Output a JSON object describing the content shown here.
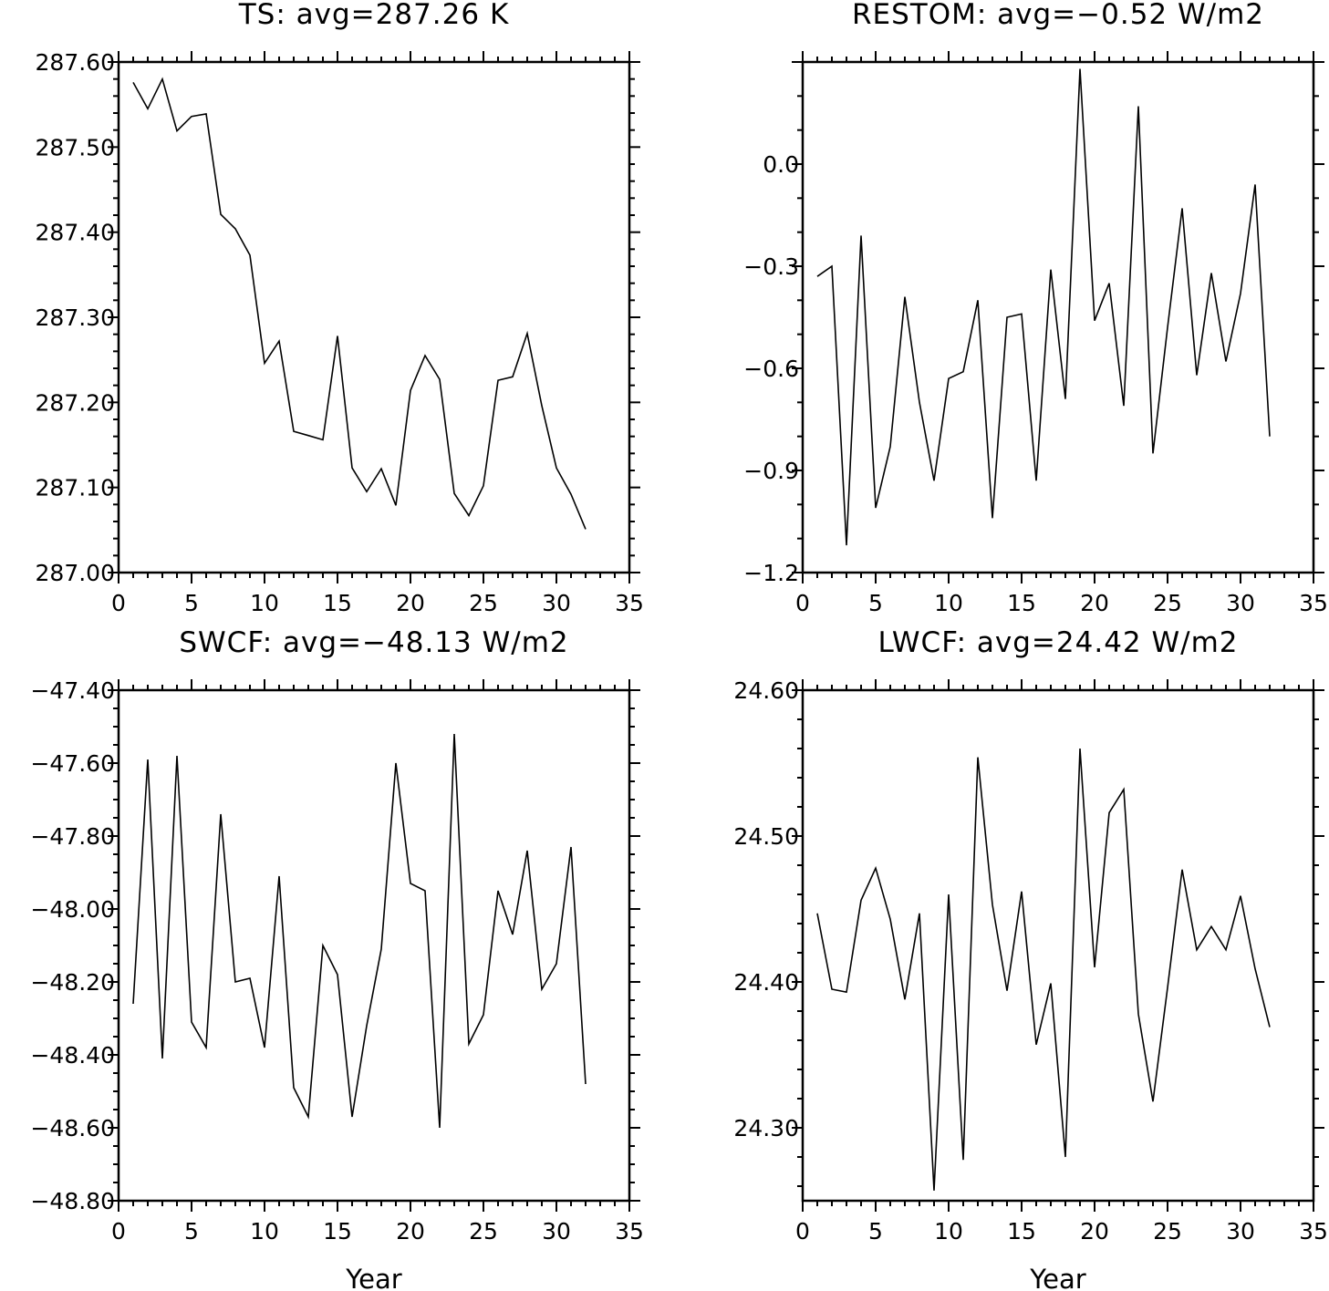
{
  "chart_data": [
    {
      "type": "line",
      "title": "TS: avg=287.26 K",
      "xlabel": "",
      "ylabel": "",
      "xlim": [
        0,
        35
      ],
      "ylim": [
        287.0,
        287.6
      ],
      "xticks": [
        "0",
        "5",
        "10",
        "15",
        "20",
        "25",
        "30",
        "35"
      ],
      "yticks": [
        "287.00",
        "287.10",
        "287.20",
        "287.30",
        "287.40",
        "287.50",
        "287.60"
      ],
      "grid": false,
      "x": [
        1,
        2,
        3,
        4,
        5,
        6,
        7,
        8,
        9,
        10,
        11,
        12,
        13,
        14,
        15,
        16,
        17,
        18,
        19,
        20,
        21,
        22,
        23,
        24,
        25,
        26,
        27,
        28,
        29,
        30,
        31,
        32
      ],
      "series": [
        {
          "values": [
            287.576,
            287.545,
            287.58,
            287.519,
            287.536,
            287.539,
            287.421,
            287.404,
            287.373,
            287.246,
            287.272,
            287.166,
            287.161,
            287.156,
            287.278,
            287.123,
            287.095,
            287.122,
            287.079,
            287.214,
            287.255,
            287.227,
            287.093,
            287.067,
            287.102,
            287.226,
            287.23,
            287.281,
            287.196,
            287.123,
            287.092,
            287.051
          ]
        }
      ]
    },
    {
      "type": "line",
      "title": "RESTOM: avg=−0.52 W/m2",
      "xlabel": "",
      "ylabel": "",
      "xlim": [
        0,
        35
      ],
      "ylim": [
        -1.2,
        0.3
      ],
      "xticks": [
        "0",
        "5",
        "10",
        "15",
        "20",
        "25",
        "30",
        "35"
      ],
      "yticks": [
        "−1.2",
        "−0.9",
        "−0.6",
        "−0.3",
        "0.0"
      ],
      "grid": false,
      "x": [
        1,
        2,
        3,
        4,
        5,
        6,
        7,
        8,
        9,
        10,
        11,
        12,
        13,
        14,
        15,
        16,
        17,
        18,
        19,
        20,
        21,
        22,
        23,
        24,
        25,
        26,
        27,
        28,
        29,
        30,
        31,
        32
      ],
      "series": [
        {
          "values": [
            -0.33,
            -0.3,
            -1.12,
            -0.21,
            -1.01,
            -0.83,
            -0.39,
            -0.7,
            -0.93,
            -0.63,
            -0.61,
            -0.4,
            -1.04,
            -0.45,
            -0.44,
            -0.93,
            -0.31,
            -0.69,
            0.28,
            -0.46,
            -0.35,
            -0.71,
            0.17,
            -0.85,
            -0.48,
            -0.13,
            -0.62,
            -0.32,
            -0.58,
            -0.38,
            -0.06,
            -0.8
          ]
        }
      ]
    },
    {
      "type": "line",
      "title": "SWCF: avg=−48.13 W/m2",
      "xlabel": "Year",
      "ylabel": "",
      "xlim": [
        0,
        35
      ],
      "ylim": [
        -48.8,
        -47.4
      ],
      "xticks": [
        "0",
        "5",
        "10",
        "15",
        "20",
        "25",
        "30",
        "35"
      ],
      "yticks": [
        "−48.80",
        "−48.60",
        "−48.40",
        "−48.20",
        "−48.00",
        "−47.80",
        "−47.60",
        "−47.40"
      ],
      "grid": false,
      "x": [
        1,
        2,
        3,
        4,
        5,
        6,
        7,
        8,
        9,
        10,
        11,
        12,
        13,
        14,
        15,
        16,
        17,
        18,
        19,
        20,
        21,
        22,
        23,
        24,
        25,
        26,
        27,
        28,
        29,
        30,
        31,
        32
      ],
      "series": [
        {
          "values": [
            -48.26,
            -47.59,
            -48.41,
            -47.58,
            -48.31,
            -48.38,
            -47.74,
            -48.2,
            -48.19,
            -48.38,
            -47.91,
            -48.49,
            -48.57,
            -48.1,
            -48.18,
            -48.57,
            -48.32,
            -48.11,
            -47.6,
            -47.93,
            -47.95,
            -48.6,
            -47.52,
            -48.37,
            -48.29,
            -47.95,
            -48.07,
            -47.84,
            -48.22,
            -48.15,
            -47.83,
            -48.48
          ]
        }
      ]
    },
    {
      "type": "line",
      "title": "LWCF: avg=24.42 W/m2",
      "xlabel": "Year",
      "ylabel": "",
      "xlim": [
        0,
        35
      ],
      "ylim": [
        24.25,
        24.6
      ],
      "xticks": [
        "0",
        "5",
        "10",
        "15",
        "20",
        "25",
        "30",
        "35"
      ],
      "yticks": [
        "24.30",
        "24.40",
        "24.50",
        "24.60"
      ],
      "grid": false,
      "x": [
        1,
        2,
        3,
        4,
        5,
        6,
        7,
        8,
        9,
        10,
        11,
        12,
        13,
        14,
        15,
        16,
        17,
        18,
        19,
        20,
        21,
        22,
        23,
        24,
        25,
        26,
        27,
        28,
        29,
        30,
        31,
        32
      ],
      "series": [
        {
          "values": [
            24.447,
            24.395,
            24.393,
            24.456,
            24.478,
            24.443,
            24.388,
            24.447,
            24.257,
            24.46,
            24.278,
            24.554,
            24.453,
            24.394,
            24.462,
            24.357,
            24.399,
            24.28,
            24.56,
            24.41,
            24.516,
            24.532,
            24.378,
            24.318,
            24.396,
            24.477,
            24.422,
            24.438,
            24.422,
            24.459,
            24.409,
            24.369
          ]
        }
      ]
    }
  ]
}
